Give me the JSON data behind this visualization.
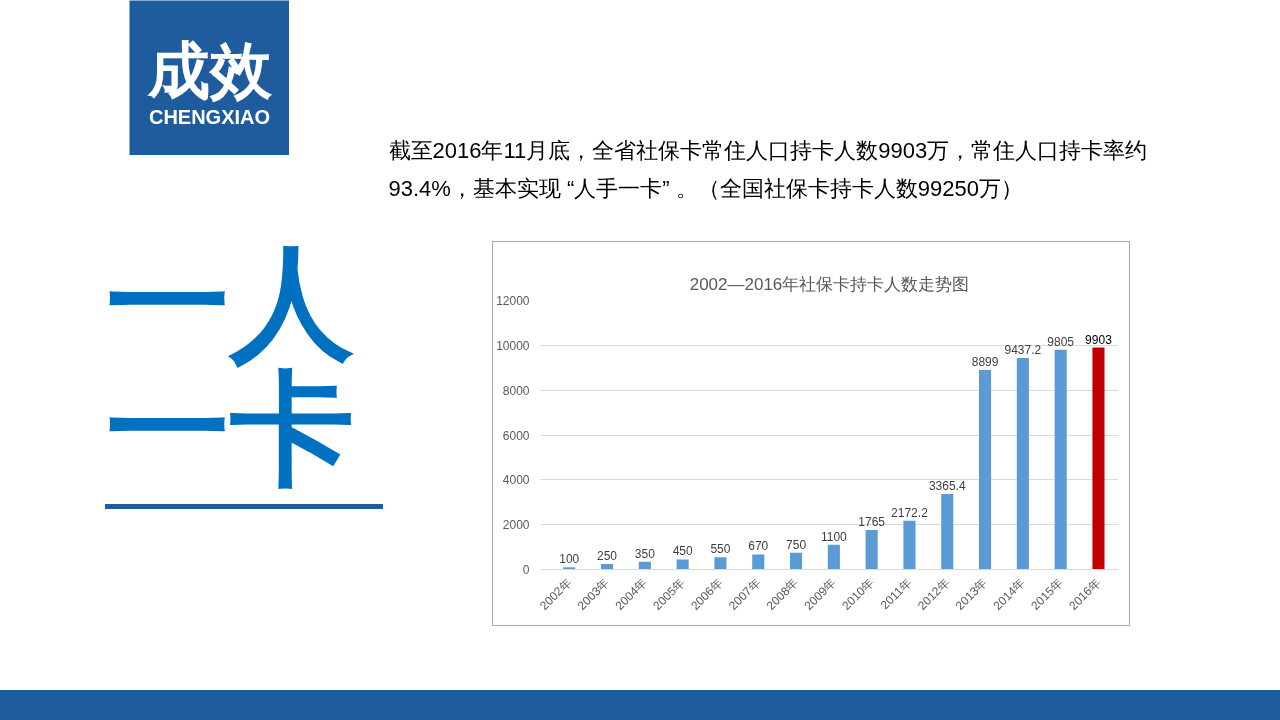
{
  "chart_data": {
    "type": "bar",
    "title": "2002—2016年社保卡持卡人数走势图",
    "categories": [
      "2002年",
      "2003年",
      "2004年",
      "2005年",
      "2006年",
      "2007年",
      "2008年",
      "2009年",
      "2010年",
      "2011年",
      "2012年",
      "2013年",
      "2014年",
      "2015年",
      "2016年"
    ],
    "values": [
      100,
      250,
      350,
      450,
      550,
      670,
      750,
      1100,
      1765,
      2172.2,
      3365.4,
      8899,
      9437.2,
      9805,
      9903
    ],
    "colors": [
      "#5b9bd5",
      "#5b9bd5",
      "#5b9bd5",
      "#5b9bd5",
      "#5b9bd5",
      "#5b9bd5",
      "#5b9bd5",
      "#5b9bd5",
      "#5b9bd5",
      "#5b9bd5",
      "#5b9bd5",
      "#5b9bd5",
      "#5b9bd5",
      "#5b9bd5",
      "#c00000"
    ],
    "ylim": [
      0,
      12000
    ],
    "yticks": [
      0,
      2000,
      4000,
      6000,
      8000,
      10000,
      12000
    ],
    "grid": "y",
    "data_labels": true,
    "annotations": [
      "成效",
      "CHENGXIAO",
      "一人",
      "一卡",
      "截至2016年11月底，全省社保卡常住人口持卡人数9903万，常住人口持卡率约",
      "93.4%，基本实现 “人手一卡” 。（全国社保卡持卡人数99250万）"
    ]
  }
}
